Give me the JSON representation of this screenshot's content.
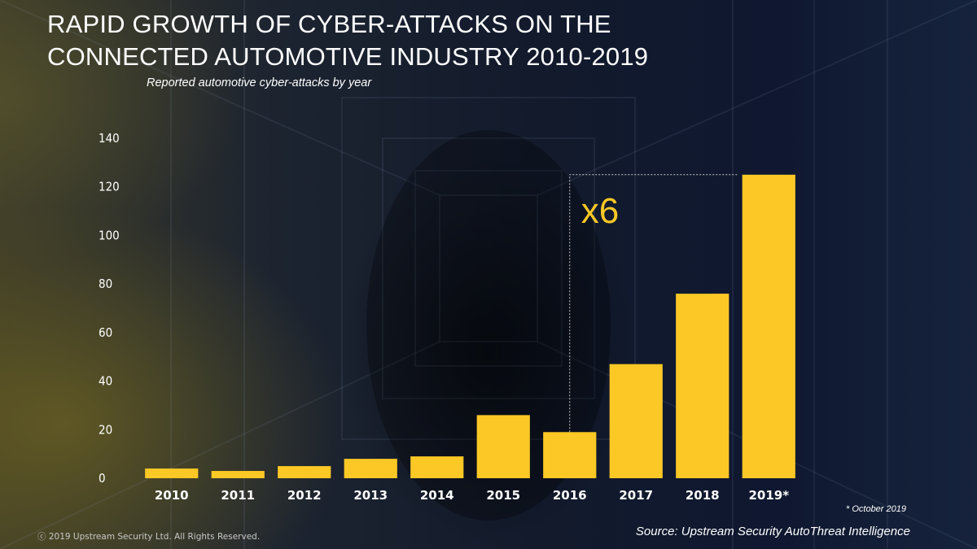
{
  "slide": {
    "title_line1": "RAPID GROWTH OF CYBER-ATTACKS ON THE",
    "title_line2": "CONNECTED AUTOMOTIVE INDUSTRY 2010-2019",
    "copyright": "ⓒ 2019 Upstream Security Ltd. All Rights Reserved.",
    "footnote": "* October 2019",
    "source": "Source: Upstream Security AutoThreat Intelligence"
  },
  "colors": {
    "bar": "#fbc825",
    "text": "#ffffff",
    "callout": "#fbc825"
  },
  "chart_data": {
    "type": "bar",
    "title": "",
    "subtitle": "Reported automotive cyber-attacks by year",
    "xlabel": "",
    "ylabel": "",
    "categories": [
      "2010",
      "2011",
      "2012",
      "2013",
      "2014",
      "2015",
      "2016",
      "2017",
      "2018",
      "2019*"
    ],
    "values": [
      4,
      3,
      5,
      8,
      9,
      26,
      19,
      47,
      76,
      125
    ],
    "ylim": [
      0,
      140
    ],
    "yticks": [
      0,
      20,
      40,
      60,
      80,
      100,
      120,
      140
    ],
    "grid": false,
    "legend": "none",
    "annotation": {
      "text": "x6",
      "from_category": "2016",
      "to_category": "2019*"
    }
  }
}
